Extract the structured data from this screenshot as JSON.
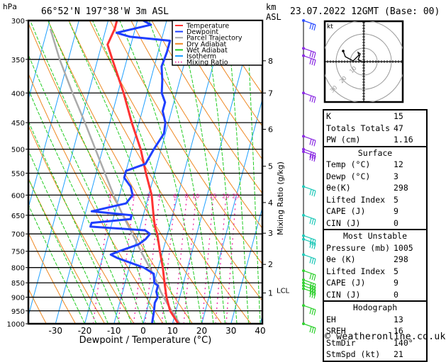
{
  "header": {
    "pressure_unit": "hPa",
    "location": "66°52'N  197°38'W  3m  ASL",
    "height_unit_line1": "km",
    "height_unit_line2": "ASL",
    "datetime": "23.07.2022  12GMT  (Base: 00)"
  },
  "chart_data": {
    "type": "skew-t",
    "xlabel": "Dewpoint / Temperature (°C)",
    "ylabel_left": "hPa",
    "ylabel_right": "Mixing Ratio (g/kg)",
    "xlim": [
      -40,
      40
    ],
    "ylim": [
      1000,
      300
    ],
    "x_ticks": [
      -30,
      -20,
      -10,
      0,
      10,
      20,
      30,
      40
    ],
    "pressure_ticks": [
      300,
      350,
      400,
      450,
      500,
      550,
      600,
      650,
      700,
      750,
      800,
      850,
      900,
      950,
      1000
    ],
    "km_ticks": [
      {
        "label": "8",
        "p": 352
      },
      {
        "label": "7",
        "p": 400
      },
      {
        "label": "6",
        "p": 462
      },
      {
        "label": "5",
        "p": 535
      },
      {
        "label": "4",
        "p": 618
      },
      {
        "label": "3",
        "p": 698
      },
      {
        "label": "2",
        "p": 790
      },
      {
        "label": "1",
        "p": 885
      }
    ],
    "lcl": {
      "label": "LCL",
      "p": 880
    },
    "mixing_ratio_labels": [
      "1",
      "2",
      "3",
      "4",
      "6",
      "8",
      "10",
      "15",
      "20",
      "25"
    ],
    "mixing_ratio_values": [
      1,
      2,
      3,
      4,
      6,
      8,
      10,
      15,
      20,
      25
    ],
    "legend": [
      {
        "name": "Temperature",
        "color": "#ff3333",
        "style": "solid"
      },
      {
        "name": "Dewpoint",
        "color": "#1f3fff",
        "style": "solid"
      },
      {
        "name": "Parcel Trajectory",
        "color": "#aaaaaa",
        "style": "solid"
      },
      {
        "name": "Dry Adiabat",
        "color": "#ee8822",
        "style": "solid"
      },
      {
        "name": "Wet Adiabat",
        "color": "#22cc22",
        "style": "solid"
      },
      {
        "name": "Isotherm",
        "color": "#1fa0ff",
        "style": "solid"
      },
      {
        "name": "Mixing Ratio",
        "color": "#ee1199",
        "style": "dotted"
      }
    ],
    "series": [
      {
        "name": "Temperature",
        "points": [
          [
            1000,
            12
          ],
          [
            950,
            8
          ],
          [
            900,
            5.5
          ],
          [
            850,
            3.5
          ],
          [
            800,
            1.5
          ],
          [
            750,
            -1
          ],
          [
            700,
            -3.5
          ],
          [
            680,
            -5
          ],
          [
            650,
            -6.5
          ],
          [
            600,
            -9
          ],
          [
            550,
            -13
          ],
          [
            500,
            -17
          ],
          [
            450,
            -22.5
          ],
          [
            400,
            -28
          ],
          [
            350,
            -35
          ],
          [
            330,
            -38
          ],
          [
            310,
            -37
          ],
          [
            300,
            -37
          ]
        ]
      },
      {
        "name": "Dewpoint",
        "points": [
          [
            1000,
            3
          ],
          [
            950,
            2.5
          ],
          [
            920,
            2
          ],
          [
            900,
            2.5
          ],
          [
            880,
            1.5
          ],
          [
            860,
            1.5
          ],
          [
            850,
            0
          ],
          [
            820,
            -1
          ],
          [
            800,
            -5
          ],
          [
            770,
            -15
          ],
          [
            760,
            -17.5
          ],
          [
            750,
            -15
          ],
          [
            730,
            -9
          ],
          [
            715,
            -7
          ],
          [
            700,
            -6
          ],
          [
            690,
            -8
          ],
          [
            680,
            -27
          ],
          [
            670,
            -27
          ],
          [
            660,
            -14
          ],
          [
            650,
            -14
          ],
          [
            640,
            -28
          ],
          [
            620,
            -17
          ],
          [
            600,
            -15.5
          ],
          [
            580,
            -17
          ],
          [
            560,
            -20
          ],
          [
            545,
            -20
          ],
          [
            530,
            -14
          ],
          [
            500,
            -12.5
          ],
          [
            470,
            -10.5
          ],
          [
            450,
            -11
          ],
          [
            430,
            -13
          ],
          [
            415,
            -13
          ],
          [
            400,
            -15
          ],
          [
            380,
            -16
          ],
          [
            360,
            -17.5
          ],
          [
            340,
            -17
          ],
          [
            325,
            -17
          ],
          [
            320,
            -31
          ],
          [
            315,
            -36
          ],
          [
            305,
            -25
          ],
          [
            300,
            -28
          ]
        ]
      },
      {
        "name": "Parcel Trajectory",
        "points": [
          [
            1000,
            12.5
          ],
          [
            950,
            8.5
          ],
          [
            900,
            4.5
          ],
          [
            880,
            3
          ],
          [
            850,
            1
          ],
          [
            800,
            -3
          ],
          [
            750,
            -7.5
          ],
          [
            700,
            -12
          ],
          [
            650,
            -17
          ],
          [
            600,
            -22
          ],
          [
            550,
            -27
          ],
          [
            500,
            -32.5
          ],
          [
            450,
            -38.5
          ],
          [
            400,
            -45.5
          ],
          [
            350,
            -53
          ],
          [
            310,
            -59
          ]
        ]
      }
    ]
  },
  "wind_barbs_pressures": [
    300,
    335,
    345,
    400,
    475,
    500,
    505,
    580,
    650,
    705,
    715,
    760,
    810,
    840,
    850,
    860,
    870,
    930,
    1000
  ],
  "hodograph": {
    "unit_label": "kt",
    "ring_labels": [
      "10",
      "20",
      "30"
    ]
  },
  "indices": {
    "rows": [
      {
        "label": "K",
        "value": "15"
      },
      {
        "label": "Totals Totals",
        "value": "47"
      },
      {
        "label": "PW (cm)",
        "value": "1.16"
      }
    ]
  },
  "surface": {
    "title": "Surface",
    "rows": [
      {
        "label": "Temp (°C)",
        "value": "12"
      },
      {
        "label": "Dewp (°C)",
        "value": "3"
      },
      {
        "label": "θe(K)",
        "value": "298"
      },
      {
        "label": "Lifted Index",
        "value": "5"
      },
      {
        "label": "CAPE (J)",
        "value": "9"
      },
      {
        "label": "CIN (J)",
        "value": "0"
      }
    ]
  },
  "most_unstable": {
    "title": "Most Unstable",
    "rows": [
      {
        "label": "Pressure (mb)",
        "value": "1005"
      },
      {
        "label": "θe (K)",
        "value": "298"
      },
      {
        "label": "Lifted Index",
        "value": "5"
      },
      {
        "label": "CAPE (J)",
        "value": "9"
      },
      {
        "label": "CIN (J)",
        "value": "0"
      }
    ]
  },
  "hodograph_table": {
    "title": "Hodograph",
    "rows": [
      {
        "label": "EH",
        "value": "13"
      },
      {
        "label": "SREH",
        "value": "16"
      },
      {
        "label": "StmDir",
        "value": "140°"
      },
      {
        "label": "StmSpd (kt)",
        "value": "21"
      }
    ]
  },
  "footer": {
    "copyright": "© weatheronline.co.uk"
  }
}
